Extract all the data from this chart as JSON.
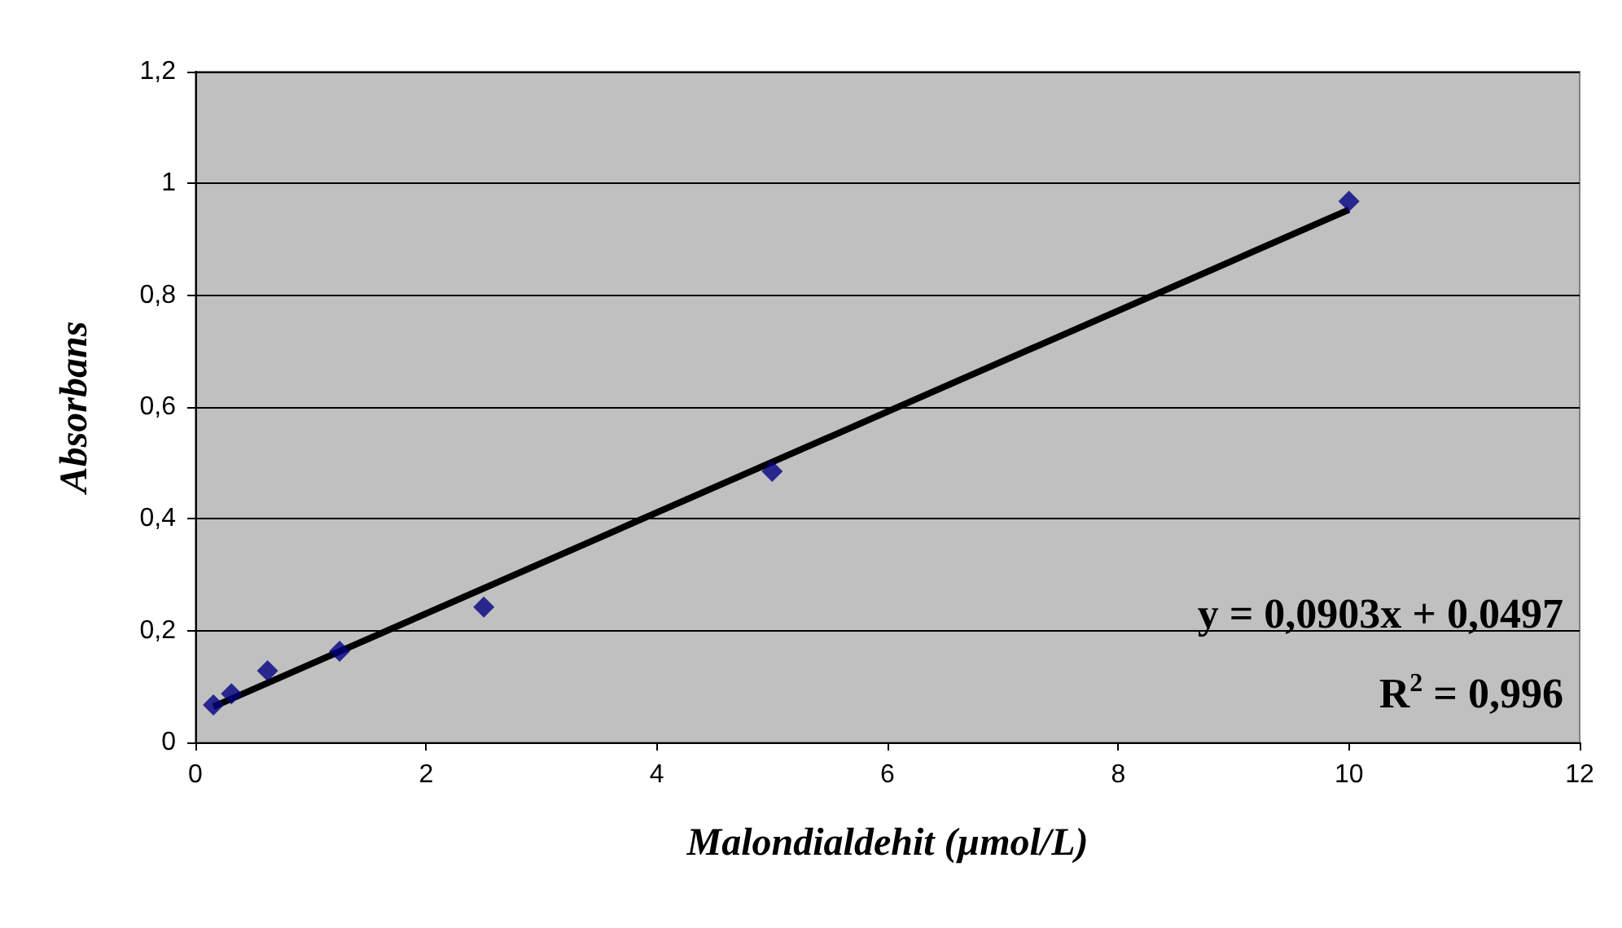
{
  "chart_data": {
    "type": "scatter",
    "xlabel": "Malondialdehit (µmol/L)",
    "ylabel": "Absorbans",
    "series": [
      {
        "color": "#000080",
        "marker": "diamond",
        "x": [
          0.156,
          0.3125,
          0.625,
          1.25,
          2.5,
          5,
          10
        ],
        "values": [
          0.067,
          0.087,
          0.128,
          0.163,
          0.242,
          0.485,
          0.968
        ]
      },
      {
        "type": "line",
        "color": "#000000",
        "marker": "none",
        "x": [
          0.156,
          10
        ],
        "values": [
          0.064,
          0.953
        ]
      }
    ],
    "xlim": [
      0,
      12
    ],
    "xticks": [
      0,
      2,
      4,
      6,
      8,
      10,
      12
    ],
    "ylim": [
      0,
      1.2
    ],
    "yticks": [
      {
        "value": 0,
        "label": "0"
      },
      {
        "value": 0.2,
        "label": "0,2"
      },
      {
        "value": 0.4,
        "label": "0,4"
      },
      {
        "value": 0.6,
        "label": "0,6"
      },
      {
        "value": 0.8,
        "label": "0,8"
      },
      {
        "value": 1,
        "label": "1"
      },
      {
        "value": 1.2,
        "label": "1,2"
      }
    ],
    "grid": "y",
    "annotations": [
      "y = 0,0903x + 0,0497",
      "R$^{2}$ = 0,996"
    ]
  }
}
